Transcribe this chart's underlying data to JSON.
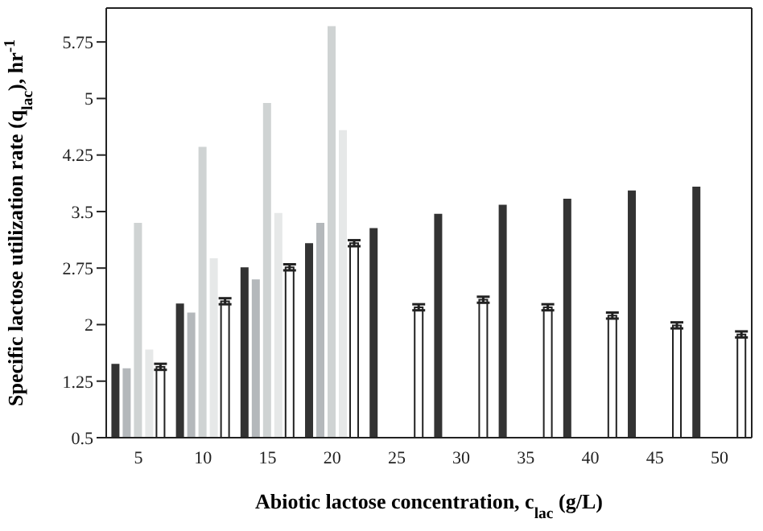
{
  "chart_data": {
    "type": "bar",
    "xlabel": "Abiotic lactose concentration, c$_{lac}$ (g/L)",
    "ylabel": "Specific lactose utilization rate (q$_{lac}$), hr$^{-1}$",
    "categories": [
      "5",
      "10",
      "15",
      "20",
      "25",
      "30",
      "35",
      "40",
      "45",
      "50"
    ],
    "series": [
      {
        "color": "#333333",
        "values": [
          1.48,
          2.28,
          2.76,
          3.08,
          3.28,
          3.47,
          3.59,
          3.67,
          3.78,
          3.83
        ]
      },
      {
        "color": "#b4b8bb",
        "values": [
          1.42,
          2.16,
          2.6,
          3.35,
          null,
          null,
          null,
          null,
          null,
          null
        ]
      },
      {
        "color": "#cfd3d3",
        "values": [
          3.35,
          4.36,
          4.94,
          5.96,
          null,
          null,
          null,
          null,
          null,
          null
        ]
      },
      {
        "color": "#e6e8e8",
        "values": [
          1.67,
          2.88,
          3.48,
          4.58,
          null,
          null,
          null,
          null,
          null,
          null
        ]
      },
      {
        "color": "#ffffff",
        "values": [
          1.44,
          2.31,
          2.76,
          3.08,
          2.23,
          2.33,
          2.23,
          2.12,
          1.99,
          1.87
        ],
        "errors": [
          0.04,
          0.04,
          0.04,
          0.04,
          0.04,
          0.04,
          0.04,
          0.04,
          0.04,
          0.04
        ]
      }
    ],
    "ylim": [
      0.5,
      6.2
    ],
    "yticks": [
      0.5,
      1.25,
      2,
      2.75,
      3.5,
      4.25,
      5,
      5.75
    ],
    "grid": false
  }
}
